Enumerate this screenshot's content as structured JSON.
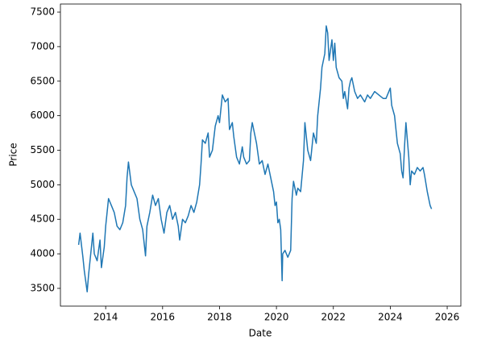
{
  "chart_data": {
    "type": "line",
    "xlabel": "Date",
    "ylabel": "Price",
    "x": [
      2013.05,
      2013.1,
      2013.2,
      2013.25,
      2013.3,
      2013.35,
      2013.4,
      2013.5,
      2013.55,
      2013.6,
      2013.7,
      2013.8,
      2013.85,
      2013.95,
      2014.0,
      2014.1,
      2014.2,
      2014.3,
      2014.4,
      2014.5,
      2014.6,
      2014.7,
      2014.75,
      2014.8,
      2014.9,
      2015.0,
      2015.1,
      2015.2,
      2015.3,
      2015.4,
      2015.45,
      2015.55,
      2015.65,
      2015.75,
      2015.85,
      2015.95,
      2016.05,
      2016.15,
      2016.25,
      2016.35,
      2016.45,
      2016.55,
      2016.6,
      2016.7,
      2016.8,
      2016.9,
      2017.0,
      2017.1,
      2017.2,
      2017.3,
      2017.35,
      2017.4,
      2017.5,
      2017.6,
      2017.65,
      2017.75,
      2017.85,
      2017.95,
      2018.0,
      2018.1,
      2018.2,
      2018.3,
      2018.35,
      2018.45,
      2018.5,
      2018.6,
      2018.7,
      2018.8,
      2018.85,
      2018.95,
      2019.05,
      2019.1,
      2019.15,
      2019.2,
      2019.3,
      2019.4,
      2019.5,
      2019.6,
      2019.7,
      2019.8,
      2019.9,
      2019.95,
      2020.0,
      2020.05,
      2020.1,
      2020.15,
      2020.2,
      2020.22,
      2020.3,
      2020.4,
      2020.5,
      2020.55,
      2020.6,
      2020.7,
      2020.75,
      2020.85,
      2020.95,
      2021.0,
      2021.1,
      2021.2,
      2021.3,
      2021.4,
      2021.45,
      2021.55,
      2021.6,
      2021.7,
      2021.75,
      2021.8,
      2021.85,
      2021.95,
      2022.0,
      2022.05,
      2022.1,
      2022.2,
      2022.3,
      2022.35,
      2022.4,
      2022.5,
      2022.55,
      2022.6,
      2022.65,
      2022.75,
      2022.85,
      2022.95,
      2023.1,
      2023.2,
      2023.3,
      2023.45,
      2023.6,
      2023.75,
      2023.85,
      2024.0,
      2024.05,
      2024.15,
      2024.25,
      2024.35,
      2024.4,
      2024.45,
      2024.5,
      2024.55,
      2024.6,
      2024.65,
      2024.7,
      2024.75,
      2024.85,
      2024.95,
      2025.05,
      2025.15,
      2025.2,
      2025.3,
      2025.4,
      2025.45
    ],
    "series": [
      {
        "color": "#1f77b4",
        "values": [
          4130,
          4300,
          3950,
          3750,
          3600,
          3450,
          3700,
          4100,
          4300,
          4000,
          3900,
          4200,
          3800,
          4100,
          4400,
          4800,
          4700,
          4600,
          4400,
          4350,
          4450,
          4700,
          5100,
          5330,
          5000,
          4900,
          4800,
          4500,
          4350,
          3970,
          4400,
          4600,
          4850,
          4700,
          4800,
          4500,
          4300,
          4600,
          4700,
          4500,
          4600,
          4400,
          4200,
          4500,
          4450,
          4550,
          4700,
          4600,
          4750,
          5000,
          5300,
          5650,
          5600,
          5750,
          5400,
          5500,
          5850,
          6000,
          5900,
          6300,
          6200,
          6250,
          5800,
          5900,
          5700,
          5400,
          5300,
          5550,
          5400,
          5300,
          5350,
          5750,
          5900,
          5800,
          5600,
          5300,
          5350,
          5150,
          5300,
          5100,
          4900,
          4700,
          4750,
          4450,
          4500,
          4350,
          3610,
          4000,
          4050,
          3950,
          4050,
          4800,
          5050,
          4850,
          4950,
          4900,
          5350,
          5900,
          5500,
          5350,
          5750,
          5600,
          6000,
          6400,
          6700,
          6900,
          7300,
          7200,
          6800,
          7100,
          6800,
          7050,
          6700,
          6550,
          6500,
          6250,
          6350,
          6100,
          6400,
          6500,
          6550,
          6350,
          6250,
          6300,
          6200,
          6300,
          6250,
          6350,
          6300,
          6250,
          6250,
          6400,
          6150,
          6000,
          5600,
          5450,
          5200,
          5100,
          5550,
          5900,
          5650,
          5400,
          5000,
          5200,
          5150,
          5250,
          5200,
          5250,
          5150,
          4900,
          4700,
          4650
        ]
      }
    ],
    "xlim": [
      2012.41,
      2026.48
    ],
    "xticks": [
      2014,
      2016,
      2018,
      2020,
      2022,
      2024,
      2026
    ],
    "ylim": [
      3243,
      7617
    ],
    "yticks": [
      3500,
      4000,
      4500,
      5000,
      5500,
      6000,
      6500,
      7000,
      7500
    ],
    "grid": false
  }
}
